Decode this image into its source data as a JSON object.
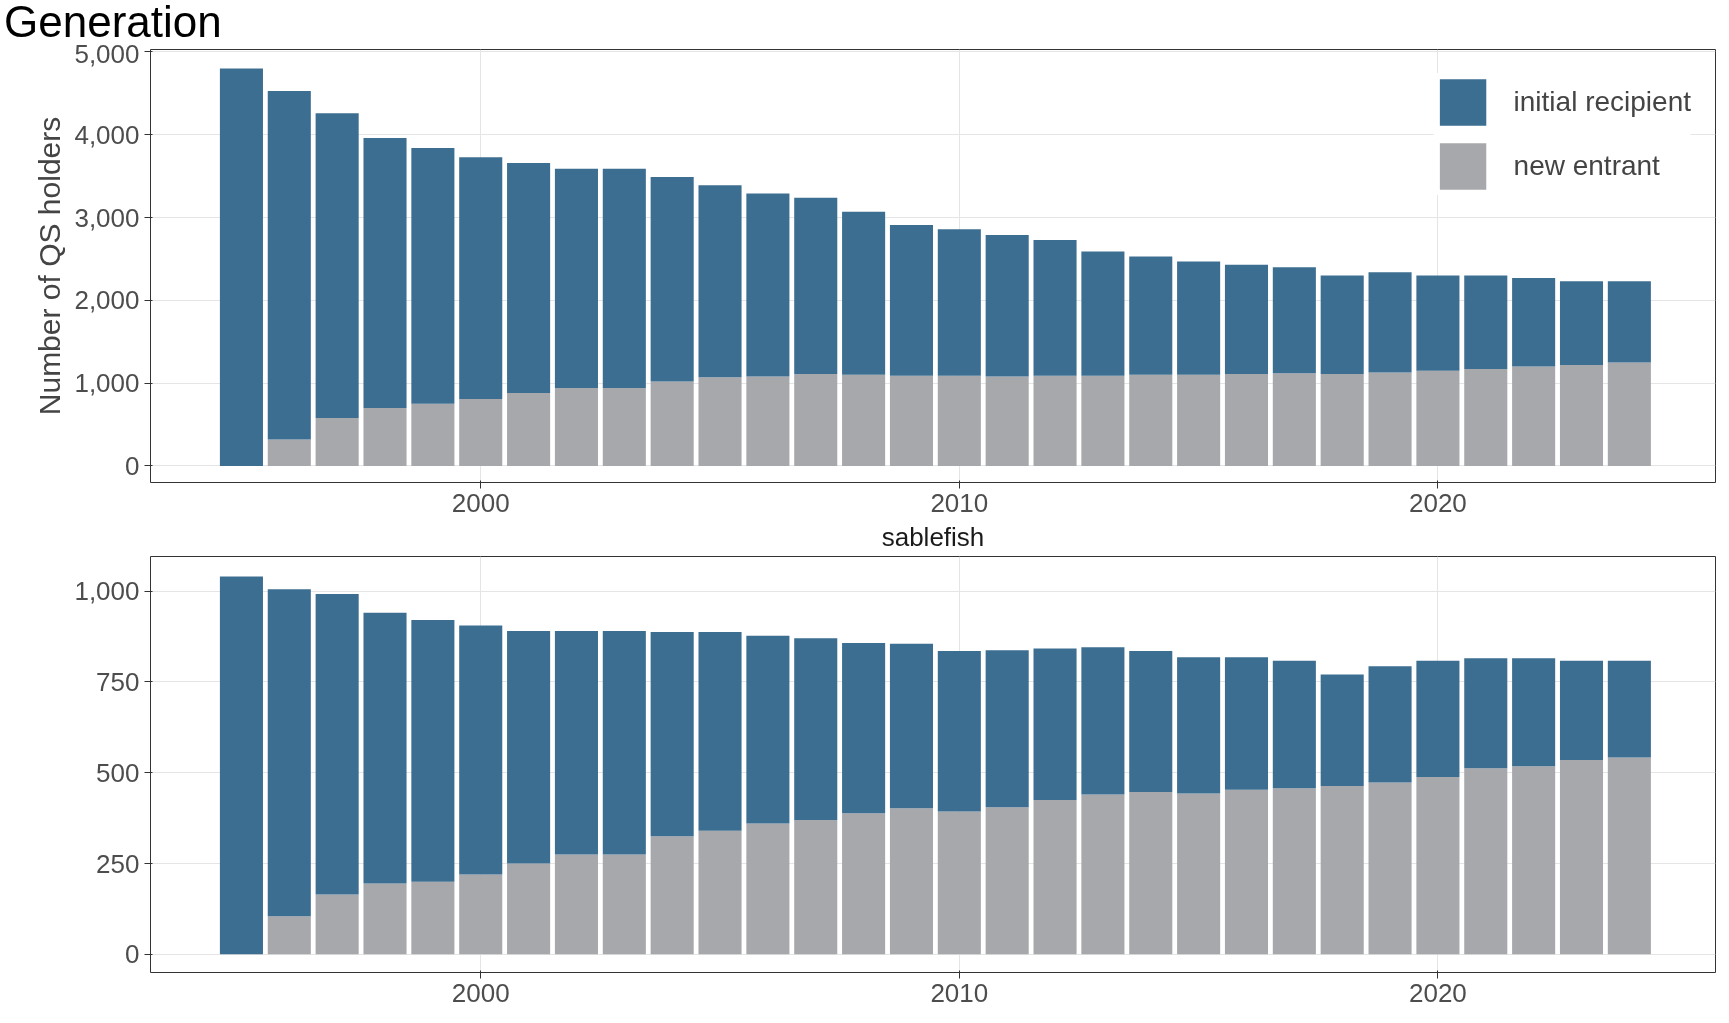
{
  "chart_data": [
    {
      "type": "bar",
      "stacked": true,
      "annotations": [
        "Generation"
      ],
      "ylabel": "Number of QS holders",
      "x": [
        1995,
        1996,
        1997,
        1998,
        1999,
        2000,
        2001,
        2002,
        2003,
        2004,
        2005,
        2006,
        2007,
        2008,
        2009,
        2010,
        2011,
        2012,
        2013,
        2014,
        2015,
        2016,
        2017,
        2018,
        2019,
        2020,
        2021,
        2022,
        2023,
        2024
      ],
      "series": [
        {
          "name": "new entrant",
          "color": "#a7a8ab",
          "values": [
            0,
            320,
            580,
            700,
            750,
            810,
            880,
            940,
            940,
            1020,
            1070,
            1080,
            1110,
            1100,
            1090,
            1090,
            1080,
            1090,
            1090,
            1100,
            1100,
            1110,
            1120,
            1110,
            1130,
            1150,
            1170,
            1200,
            1220,
            1250
          ]
        },
        {
          "name": "initial recipient",
          "color": "#3c6e91",
          "values": [
            4800,
            4210,
            3680,
            3260,
            3090,
            2920,
            2780,
            2650,
            2650,
            2470,
            2320,
            2210,
            2130,
            1970,
            1820,
            1770,
            1710,
            1640,
            1500,
            1430,
            1370,
            1320,
            1280,
            1190,
            1210,
            1150,
            1130,
            1070,
            1010,
            980
          ]
        }
      ],
      "xlim": [
        1993.1,
        2025.8
      ],
      "xticks": [
        2000,
        2010,
        2020
      ],
      "ylim": [
        -200,
        5030
      ],
      "yticks": [
        0,
        {
          "value": 1000,
          "label": "1,000"
        },
        {
          "value": 2000,
          "label": "2,000"
        },
        {
          "value": 3000,
          "label": "3,000"
        },
        {
          "value": 4000,
          "label": "4,000"
        },
        {
          "value": 5000,
          "label": "5,000"
        }
      ],
      "grid": true,
      "legend": "top right"
    },
    {
      "type": "bar",
      "stacked": true,
      "title": "sablefish",
      "x": [
        1995,
        1996,
        1997,
        1998,
        1999,
        2000,
        2001,
        2002,
        2003,
        2004,
        2005,
        2006,
        2007,
        2008,
        2009,
        2010,
        2011,
        2012,
        2013,
        2014,
        2015,
        2016,
        2017,
        2018,
        2019,
        2020,
        2021,
        2022,
        2023,
        2024
      ],
      "series": [
        {
          "color": "#a7a8ab",
          "values": [
            0,
            105,
            165,
            195,
            200,
            220,
            250,
            275,
            275,
            325,
            340,
            360,
            370,
            388,
            402,
            393,
            405,
            425,
            440,
            447,
            443,
            453,
            457,
            463,
            473,
            488,
            512,
            518,
            535,
            542
          ]
        },
        {
          "color": "#3c6e91",
          "values": [
            1040,
            900,
            827,
            745,
            720,
            685,
            640,
            615,
            615,
            562,
            547,
            517,
            500,
            469,
            453,
            442,
            432,
            417,
            405,
            388,
            375,
            365,
            351,
            307,
            320,
            320,
            303,
            297,
            273,
            266
          ]
        }
      ],
      "xlim": [
        1993.1,
        2025.8
      ],
      "xticks": [
        2000,
        2010,
        2020
      ],
      "ylim": [
        -50,
        1095
      ],
      "yticks": [
        0,
        250,
        500,
        750,
        {
          "value": 1000,
          "label": "1,000"
        }
      ],
      "grid": true
    }
  ]
}
